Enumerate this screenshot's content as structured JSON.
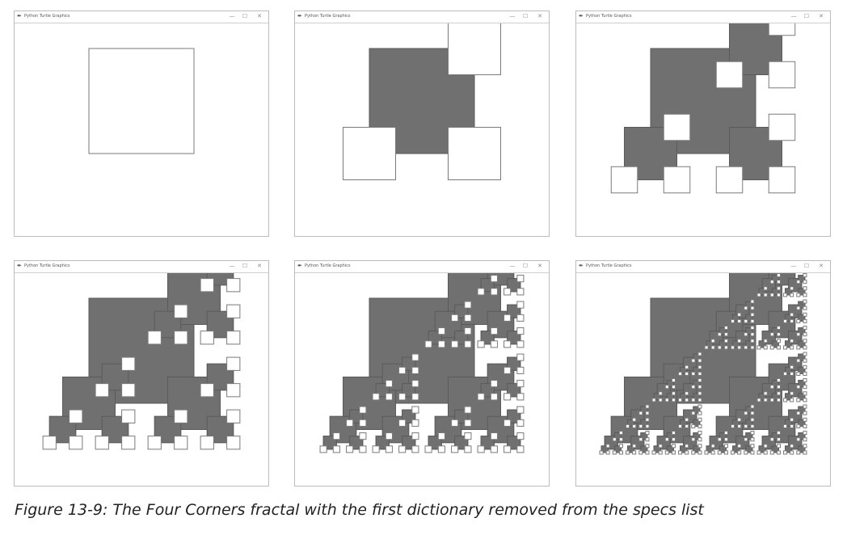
{
  "windows": [
    {
      "title": "Python Turtle Graphics",
      "depth": 0
    },
    {
      "title": "Python Turtle Graphics",
      "depth": 1
    },
    {
      "title": "Python Turtle Graphics",
      "depth": 2
    },
    {
      "title": "Python Turtle Graphics",
      "depth": 3
    },
    {
      "title": "Python Turtle Graphics",
      "depth": 4
    },
    {
      "title": "Python Turtle Graphics",
      "depth": 5
    }
  ],
  "window_controls": {
    "minimize": "—",
    "maximize": "☐",
    "close": "✕"
  },
  "icons": {
    "window_icon": "feather-icon"
  },
  "colors": {
    "fill": "#707070",
    "stroke": "#7a7a7a",
    "background": "#ffffff"
  },
  "caption": "Figure 13-9: The Four Corners fractal with the first dictionary removed from the specs list"
}
